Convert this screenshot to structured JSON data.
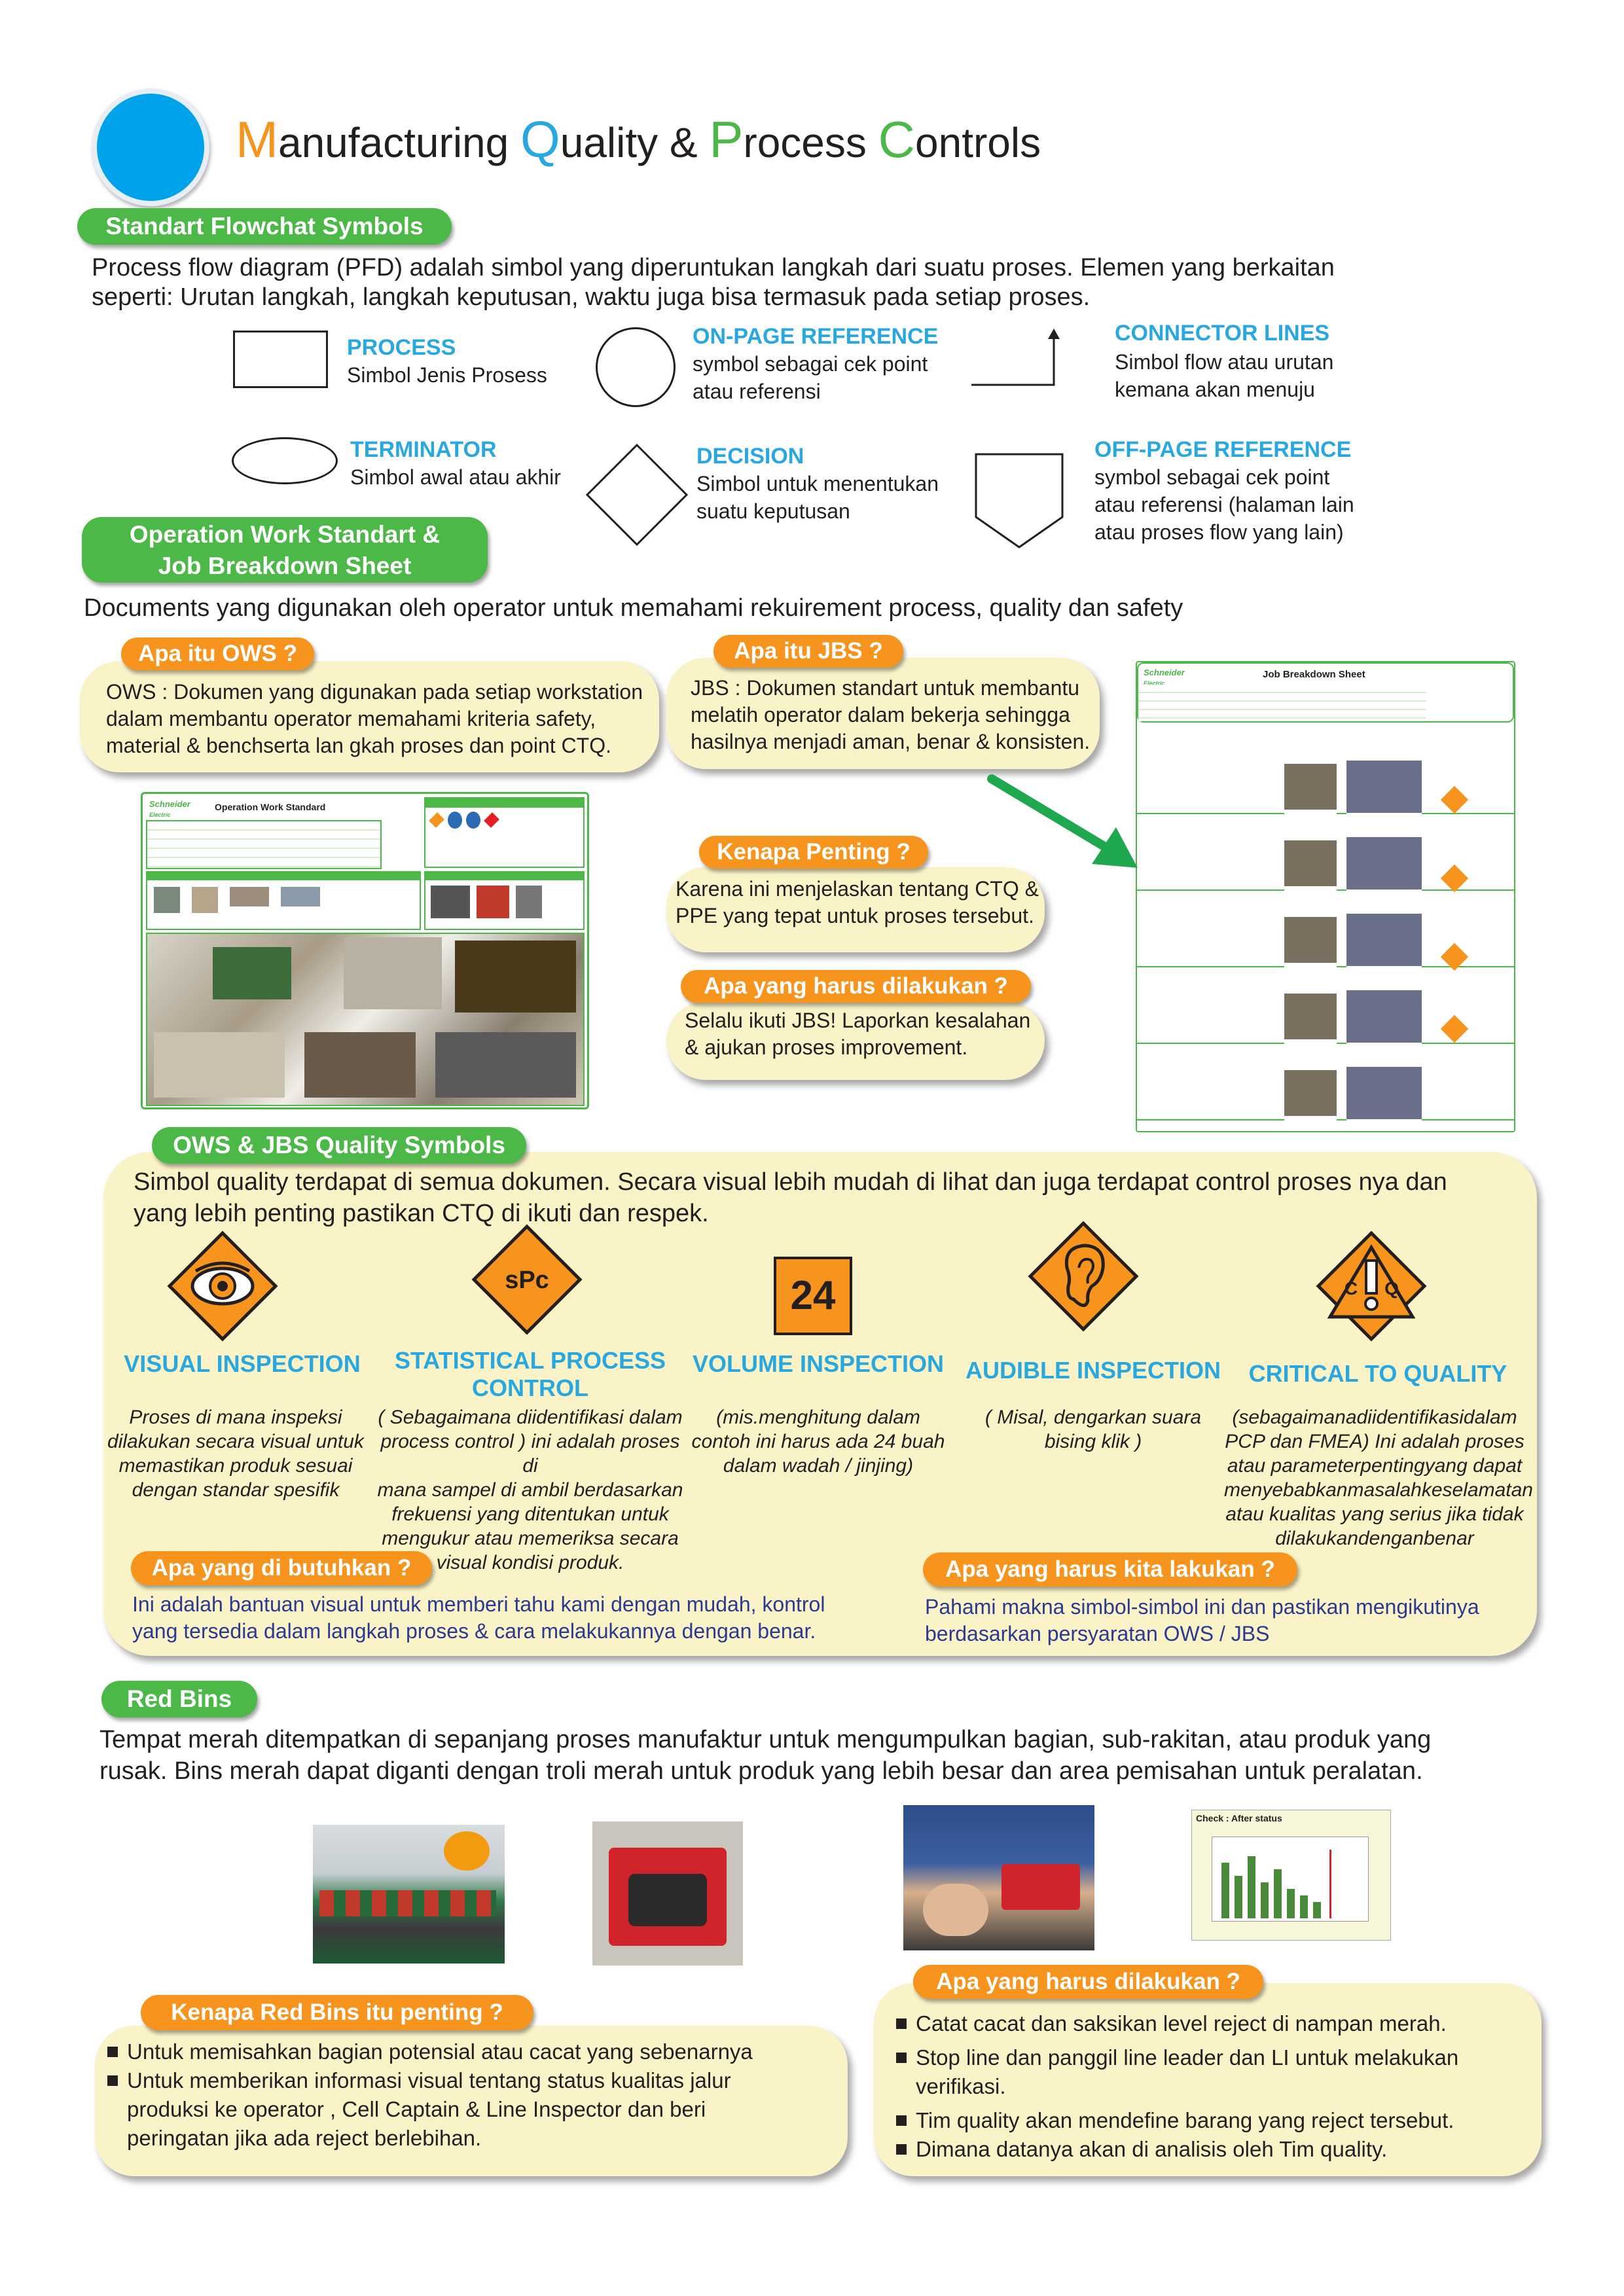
{
  "header": {
    "title_parts": [
      {
        "cap": "M",
        "rest": "anufacturing ",
        "color": "#f7941d"
      },
      {
        "cap": "Q",
        "rest": "uality & ",
        "color": "#29a8e0"
      },
      {
        "cap": "P",
        "rest": "rocess ",
        "color": "#4cb848"
      },
      {
        "cap": "C",
        "rest": "ontrols",
        "color": "#4cb848"
      }
    ],
    "circle_color": "#00a2e9"
  },
  "flowchart": {
    "heading": "Standart Flowchat Symbols",
    "intro_line1": "Process flow diagram (PFD) adalah simbol yang diperuntukan langkah dari suatu proses. Elemen yang berkaitan",
    "intro_line2": "seperti: Urutan langkah, langkah keputusan, waktu juga bisa termasuk pada setiap proses.",
    "symbols": [
      {
        "title": "PROCESS",
        "desc1": "Simbol Jenis Prosess",
        "desc2": "",
        "desc3": ""
      },
      {
        "title": "ON-PAGE REFERENCE",
        "desc1": "symbol sebagai cek point",
        "desc2": "atau referensi",
        "desc3": ""
      },
      {
        "title": "CONNECTOR LINES",
        "desc1": "Simbol flow atau urutan",
        "desc2": "kemana akan menuju",
        "desc3": ""
      },
      {
        "title": "TERMINATOR",
        "desc1": "Simbol awal atau akhir",
        "desc2": "",
        "desc3": ""
      },
      {
        "title": "DECISION",
        "desc1": "Simbol untuk menentukan",
        "desc2": "suatu keputusan",
        "desc3": ""
      },
      {
        "title": "OFF-PAGE REFERENCE",
        "desc1": "symbol sebagai cek point",
        "desc2": "atau referensi (halaman lain",
        "desc3": "atau proses flow yang lain)"
      }
    ]
  },
  "ows": {
    "heading_line1": "Operation Work Standart &",
    "heading_line2": "Job Breakdown Sheet",
    "intro": "Documents yang digunakan oleh operator untuk memahami rekuirement process, quality dan safety",
    "what_ows": {
      "label": "Apa itu OWS ?",
      "line1": "OWS : Dokumen yang digunakan pada setiap workstation",
      "line2": "dalam membantu operator memahami kriteria safety,",
      "line3": "material & benchserta lan gkah proses dan point CTQ."
    },
    "what_jbs": {
      "label": "Apa itu JBS ?",
      "line1": "JBS : Dokumen standart untuk membantu",
      "line2": "melatih operator dalam bekerja sehingga",
      "line3": "hasilnya menjadi aman, benar & konsisten."
    },
    "why": {
      "label": "Kenapa Penting ?",
      "line1": "Karena ini menjelaskan tentang CTQ &",
      "line2": "PPE yang tepat untuk proses tersebut."
    },
    "todo": {
      "label": "Apa yang harus dilakukan ?",
      "line1": "Selalu ikuti JBS! Laporkan kesalahan",
      "line2": "& ajukan proses improvement."
    },
    "ows_doc": {
      "brand": "Schneider",
      "brand_sub": "Electric",
      "title": "Operation Work Standard"
    },
    "jbs_doc": {
      "brand": "Schneider",
      "brand_sub": "Electric",
      "title": "Job Breakdown Sheet"
    }
  },
  "quality": {
    "heading": "OWS & JBS Quality Symbols",
    "intro_line1": "Simbol quality terdapat di semua dokumen. Secara visual lebih mudah di lihat dan juga terdapat control proses nya dan",
    "intro_line2": "yang lebih penting pastikan CTQ di ikuti dan respek.",
    "symbols": [
      {
        "icon": "eye-icon",
        "glyph": "",
        "title1": "VISUAL INSPECTION",
        "title2": "",
        "desc": [
          "Proses di mana inspeksi",
          "dilakukan secara visual untuk",
          "memastikan produk sesuai",
          "dengan standar spesifik"
        ]
      },
      {
        "icon": "spc-icon",
        "glyph": "sPc",
        "title1": "STATISTICAL PROCESS",
        "title2": "CONTROL",
        "desc": [
          "( Sebagaimana diidentifikasi dalam",
          "process control ) ini adalah proses di",
          "mana sampel di ambil berdasarkan",
          "frekuensi yang ditentukan untuk",
          "mengukur atau memeriksa secara",
          "visual kondisi produk."
        ]
      },
      {
        "icon": "volume-24-icon",
        "glyph": "24",
        "title1": "VOLUME INSPECTION",
        "title2": "",
        "desc": [
          "(mis.menghitung dalam",
          "contoh ini harus ada 24 buah",
          "dalam wadah / jinjing)"
        ]
      },
      {
        "icon": "ear-icon",
        "glyph": "",
        "title1": "AUDIBLE INSPECTION",
        "title2": "",
        "desc": [
          "( Misal, dengarkan suara",
          "bising klik )"
        ]
      },
      {
        "icon": "ctq-icon",
        "glyph": "CTQ",
        "title1": "CRITICAL TO QUALITY",
        "title2": "",
        "desc": [
          "(sebagaimanadiidentifikasidalam",
          "PCP dan FMEA) Ini adalah proses",
          "atau parameterpentingyang dapat",
          "menyebabkanmasalahkeselamatan",
          "atau kualitas yang serius jika tidak",
          "dilakukandenganbenar"
        ]
      }
    ],
    "need": {
      "label": "Apa yang di butuhkan ?",
      "line1": "Ini adalah bantuan visual untuk memberi tahu kami dengan mudah, kontrol",
      "line2": "yang tersedia dalam langkah proses & cara melakukannya dengan benar."
    },
    "do": {
      "label": "Apa yang harus kita lakukan ?",
      "line1": "Pahami makna simbol-simbol ini dan pastikan mengikutinya",
      "line2": "berdasarkan persyaratan OWS / JBS"
    }
  },
  "redbins": {
    "heading": "Red Bins",
    "intro_line1": "Tempat merah ditempatkan di sepanjang proses manufaktur untuk mengumpulkan bagian, sub-rakitan, atau produk yang",
    "intro_line2": "rusak. Bins merah dapat diganti dengan troli merah untuk produk yang lebih besar dan area pemisahan untuk peralatan.",
    "chart_caption": "Check : After status",
    "why": {
      "label": "Kenapa Red Bins itu penting ?",
      "items": [
        "Untuk memisahkan bagian  potensial atau cacat yang sebenarnya",
        "Untuk memberikan informasi visual tentang status kualitas jalur produksi ke operator , Cell Captain & Line Inspector dan beri peringatan jika ada reject berlebihan."
      ]
    },
    "todo": {
      "label": "Apa yang harus dilakukan ?",
      "items": [
        "Catat cacat dan saksikan level reject  di nampan merah.",
        "Stop line dan panggil line leader dan LI untuk melakukan verifikasi.",
        "Tim quality akan mendefine barang yang reject tersebut.",
        "Dimana datanya akan di analisis oleh Tim quality."
      ]
    }
  }
}
